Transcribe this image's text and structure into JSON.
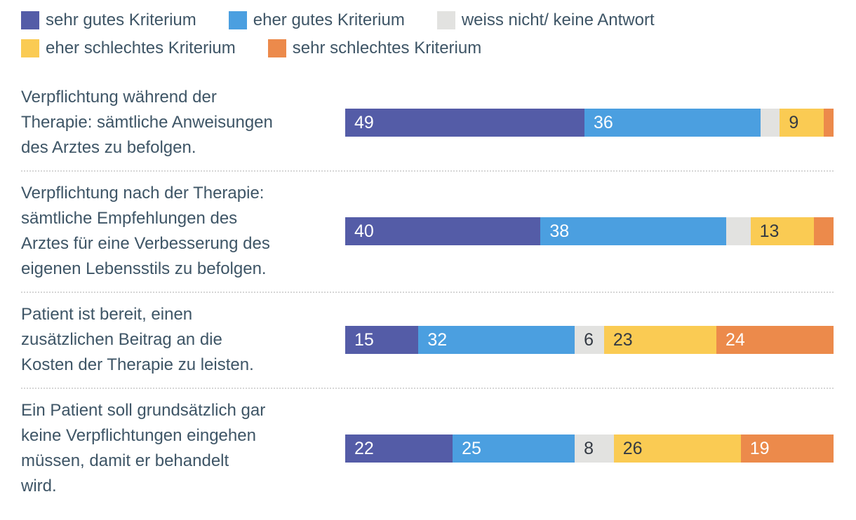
{
  "chart_data": {
    "type": "bar",
    "orientation": "horizontal",
    "stacked": true,
    "xlim": [
      0,
      100
    ],
    "legend_position": "top",
    "grid": false,
    "label_min_value_shown": 6,
    "categories": [
      "Verpflichtung während der\nTherapie: sämtliche Anweisungen\ndes Arztes zu befolgen.",
      "Verpflichtung nach der Therapie:\nsämtliche Empfehlungen des\nArztes für eine Verbesserung des\neigenen Lebensstils zu befolgen.",
      "Patient ist bereit, einen\nzusätzlichen Beitrag an die\nKosten der Therapie zu leisten.",
      "Ein Patient soll grundsätzlich gar\nkeine Verpflichtungen eingehen\nmüssen, damit er behandelt\nwird."
    ],
    "series": [
      {
        "key": "sehr-gutes-kriterium",
        "name": "sehr gutes Kriterium",
        "color": "#545CA7",
        "label_color": "#ffffff",
        "values": [
          49,
          40,
          15,
          22
        ]
      },
      {
        "key": "eher-gutes-kriterium",
        "name": "eher gutes Kriterium",
        "color": "#4B9FE0",
        "label_color": "#ffffff",
        "values": [
          36,
          38,
          32,
          25
        ]
      },
      {
        "key": "weiss-nicht-keine-antwort",
        "name": "weiss nicht/ keine Antwort",
        "color": "#E2E2E0",
        "label_color": "#343A43",
        "values": [
          4,
          5,
          6,
          8
        ]
      },
      {
        "key": "eher-schlechtes-kriterium",
        "name": "eher schlechtes Kriterium",
        "color": "#FACB53",
        "label_color": "#343A43",
        "values": [
          9,
          13,
          23,
          26
        ]
      },
      {
        "key": "sehr-schlechtes-kriterium",
        "name": "sehr schlechtes Kriterium",
        "color": "#EC8A4B",
        "label_color": "#ffffff",
        "values": [
          2,
          4,
          24,
          19
        ]
      }
    ],
    "colors": {
      "text": "#3E5566",
      "divider": "#d6d6d6",
      "background": "#ffffff"
    }
  }
}
